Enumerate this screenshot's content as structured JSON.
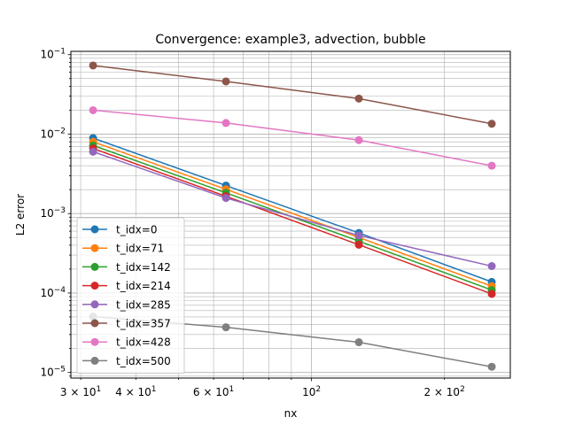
{
  "chart_data": {
    "type": "line",
    "title": "Convergence: example3, advection, bubble",
    "xlabel": "nx",
    "ylabel": "L2 error",
    "xscale": "log",
    "yscale": "log",
    "xlim": [
      28.5,
      282
    ],
    "ylim": [
      8.5e-06,
      0.11
    ],
    "grid": "both-major-minor",
    "legend_position": "lower-left",
    "x": [
      32,
      64,
      128,
      256
    ],
    "xticks": [
      {
        "value": 30,
        "base": "3 × 10",
        "exp": "1"
      },
      {
        "value": 40,
        "base": "4 × 10",
        "exp": "1"
      },
      {
        "value": 60,
        "base": "6 × 10",
        "exp": "1"
      },
      {
        "value": 100,
        "base": "10",
        "exp": "2"
      },
      {
        "value": 200,
        "base": "2 × 10",
        "exp": "2"
      }
    ],
    "yticks": [
      {
        "value": 1e-05,
        "base": "10",
        "exp": "−5"
      },
      {
        "value": 0.0001,
        "base": "10",
        "exp": "−4"
      },
      {
        "value": 0.001,
        "base": "10",
        "exp": "−3"
      },
      {
        "value": 0.01,
        "base": "10",
        "exp": "−2"
      },
      {
        "value": 0.1,
        "base": "10",
        "exp": "−1"
      }
    ],
    "series": [
      {
        "name": "t_idx=0",
        "color": "#1f77b4",
        "values": [
          0.0089,
          0.00225,
          0.00057,
          0.000138
        ]
      },
      {
        "name": "t_idx=71",
        "color": "#ff7f0e",
        "values": [
          0.008,
          0.00202,
          0.0005,
          0.000122
        ]
      },
      {
        "name": "t_idx=142",
        "color": "#2ca02c",
        "values": [
          0.0072,
          0.00182,
          0.00045,
          0.000109
        ]
      },
      {
        "name": "t_idx=214",
        "color": "#d62728",
        "values": [
          0.0066,
          0.00165,
          0.000405,
          9.75e-05
        ]
      },
      {
        "name": "t_idx=285",
        "color": "#9467bd",
        "values": [
          0.006,
          0.00157,
          0.00053,
          0.000218
        ]
      },
      {
        "name": "t_idx=357",
        "color": "#8c564b",
        "values": [
          0.073,
          0.046,
          0.028,
          0.0135
        ]
      },
      {
        "name": "t_idx=428",
        "color": "#e377c2",
        "values": [
          0.02,
          0.0138,
          0.0084,
          0.004
        ]
      },
      {
        "name": "t_idx=500",
        "color": "#7f7f7f",
        "values": [
          5.05e-05,
          3.7e-05,
          2.4e-05,
          1.18e-05
        ]
      }
    ]
  }
}
